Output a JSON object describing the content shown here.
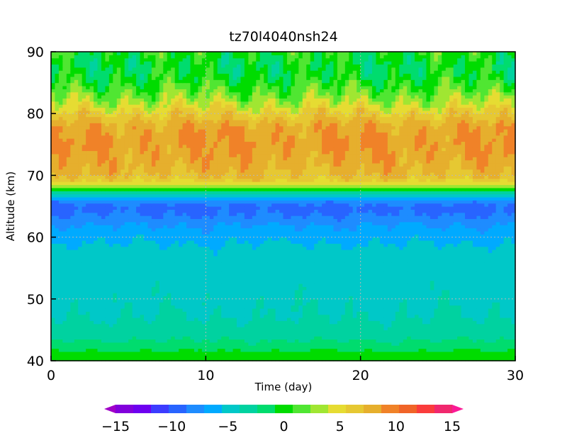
{
  "chart_data": {
    "type": "heatmap",
    "title": "tz70l4040nsh24",
    "xlabel": "Time (day)",
    "ylabel": "Altitude (km)",
    "xlim": [
      0,
      30
    ],
    "ylim": [
      40,
      90
    ],
    "xticks": [
      0,
      10,
      20,
      30
    ],
    "yticks": [
      40,
      50,
      60,
      70,
      80,
      90
    ],
    "grid": true,
    "colorbar": {
      "placement": "bottom",
      "min": -15,
      "max": 15,
      "step": 1.5,
      "ticks": [
        -15,
        -10,
        -5,
        0,
        5,
        10,
        15
      ],
      "tick_labels": [
        "−15",
        "−10",
        "−5",
        "0",
        "5",
        "10",
        "15"
      ],
      "colors": [
        "#a000c8",
        "#8200dc",
        "#6e00f0",
        "#3c3cff",
        "#2864ff",
        "#1e8cff",
        "#00aaff",
        "#00c8c8",
        "#00d2a0",
        "#00dc6e",
        "#00dc00",
        "#50e632",
        "#a0e632",
        "#e6dc32",
        "#e6c832",
        "#e6af2d",
        "#f08228",
        "#f06428",
        "#fa3c3c",
        "#f0286e",
        "#fa1a96"
      ]
    },
    "profile": {
      "altitude_km": [
        40,
        41,
        42,
        44,
        47,
        50,
        55,
        58,
        60,
        62,
        63,
        64,
        65,
        66,
        67,
        67.5,
        68,
        68.5,
        69,
        70,
        72,
        75,
        78,
        80,
        82,
        84,
        86,
        88,
        90
      ],
      "value": [
        -1,
        -0.5,
        -2,
        -3.5,
        -4.5,
        -4.8,
        -5.2,
        -5.5,
        -6.5,
        -7.5,
        -8.5,
        -9.2,
        -9.5,
        -8,
        -5,
        -2,
        0.5,
        3,
        4.5,
        6,
        6.8,
        7.5,
        7,
        5,
        2.5,
        0.5,
        -1,
        -1.5,
        -0.5
      ]
    }
  }
}
